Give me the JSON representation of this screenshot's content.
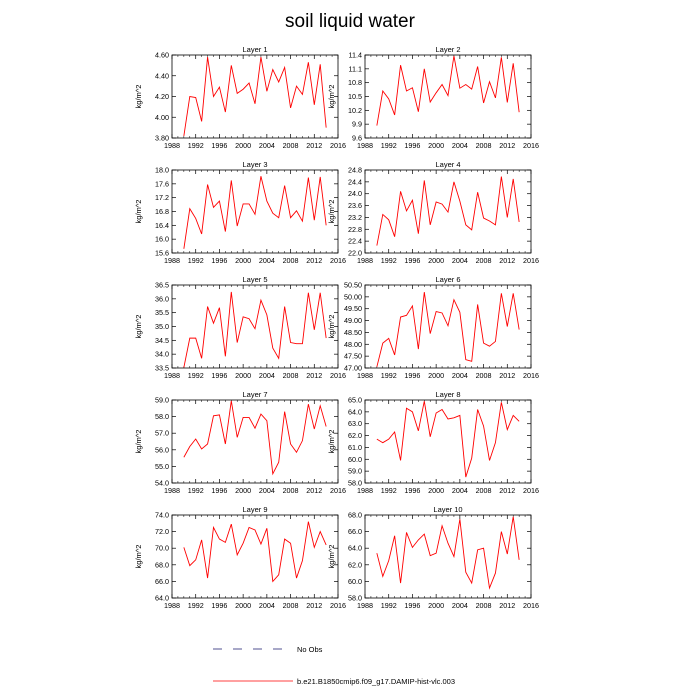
{
  "figure": {
    "title": "soil liquid water"
  },
  "legend": {
    "no_obs_label": "No Obs",
    "model_label": "b.e21.B1850cmip6.f09_g17.DAMIP-hist-vlc.003",
    "model_color": "#ff0000",
    "obs_color": "#1a1a6e"
  },
  "chart_data": [
    {
      "type": "line",
      "title": "Layer 1",
      "ylabel": "kg/m^2",
      "xlim": [
        1988,
        2016
      ],
      "ylim": [
        3.8,
        4.6
      ],
      "xticks": [
        1988,
        1992,
        1996,
        2000,
        2004,
        2008,
        2012,
        2016
      ],
      "xtick_labels": [
        "1988",
        "1992",
        "1996",
        "2000",
        "2004",
        "2008",
        "2012",
        "2016"
      ],
      "yticks": [
        3.8,
        4.0,
        4.2,
        4.4,
        4.6
      ],
      "ytick_labels": [
        "3.80",
        "4.00",
        "4.20",
        "4.40",
        "4.60"
      ],
      "x": [
        1990,
        1991,
        1992,
        1993,
        1994,
        1995,
        1996,
        1997,
        1998,
        1999,
        2000,
        2001,
        2002,
        2003,
        2004,
        2005,
        2006,
        2007,
        2008,
        2009,
        2010,
        2011,
        2012,
        2013,
        2014
      ],
      "series": [
        {
          "values": [
            3.82,
            4.2,
            4.19,
            3.96,
            4.58,
            4.2,
            4.29,
            4.05,
            4.5,
            4.23,
            4.27,
            4.33,
            4.13,
            4.58,
            4.25,
            4.46,
            4.34,
            4.48,
            4.09,
            4.3,
            4.22,
            4.53,
            4.12,
            4.51,
            3.9
          ]
        }
      ]
    },
    {
      "type": "line",
      "title": "Layer 2",
      "ylabel": "kg/m^2",
      "xlim": [
        1988,
        2016
      ],
      "ylim": [
        9.6,
        11.4
      ],
      "xticks": [
        1988,
        1992,
        1996,
        2000,
        2004,
        2008,
        2012,
        2016
      ],
      "xtick_labels": [
        "1988",
        "1992",
        "1996",
        "2000",
        "2004",
        "2008",
        "2012",
        "2016"
      ],
      "yticks": [
        9.6,
        9.9,
        10.2,
        10.5,
        10.8,
        11.1,
        11.4
      ],
      "ytick_labels": [
        "9.6",
        "9.9",
        "10.2",
        "10.5",
        "10.8",
        "11.1",
        "11.4"
      ],
      "x": [
        1990,
        1991,
        1992,
        1993,
        1994,
        1995,
        1996,
        1997,
        1998,
        1999,
        2000,
        2001,
        2002,
        2003,
        2004,
        2005,
        2006,
        2007,
        2008,
        2009,
        2010,
        2011,
        2012,
        2013,
        2014
      ],
      "series": [
        {
          "values": [
            9.87,
            10.62,
            10.45,
            10.1,
            11.18,
            10.62,
            10.69,
            10.17,
            11.1,
            10.38,
            10.58,
            10.76,
            10.52,
            11.38,
            10.68,
            10.76,
            10.66,
            11.15,
            10.36,
            10.82,
            10.47,
            11.35,
            10.37,
            11.22,
            10.16
          ]
        }
      ]
    },
    {
      "type": "line",
      "title": "Layer 3",
      "ylabel": "kg/m^2",
      "xlim": [
        1988,
        2016
      ],
      "ylim": [
        15.6,
        18.0
      ],
      "xticks": [
        1988,
        1992,
        1996,
        2000,
        2004,
        2008,
        2012,
        2016
      ],
      "xtick_labels": [
        "1988",
        "1992",
        "1996",
        "2000",
        "2004",
        "2008",
        "2012",
        "2016"
      ],
      "yticks": [
        15.6,
        16.0,
        16.4,
        16.8,
        17.2,
        17.6,
        18.0
      ],
      "ytick_labels": [
        "15.6",
        "16.0",
        "16.4",
        "16.8",
        "17.2",
        "17.6",
        "18.0"
      ],
      "x": [
        1990,
        1991,
        1992,
        1993,
        1994,
        1995,
        1996,
        1997,
        1998,
        1999,
        2000,
        2001,
        2002,
        2003,
        2004,
        2005,
        2006,
        2007,
        2008,
        2009,
        2010,
        2011,
        2012,
        2013,
        2014
      ],
      "series": [
        {
          "values": [
            15.72,
            16.88,
            16.6,
            16.15,
            17.58,
            16.92,
            17.1,
            16.22,
            17.7,
            16.38,
            17.02,
            17.02,
            16.72,
            17.82,
            17.1,
            16.75,
            16.62,
            17.55,
            16.62,
            16.82,
            16.52,
            17.78,
            16.55,
            17.8,
            16.4
          ]
        }
      ]
    },
    {
      "type": "line",
      "title": "Layer 4",
      "ylabel": "kg/m^2",
      "xlim": [
        1988,
        2016
      ],
      "ylim": [
        22.0,
        24.8
      ],
      "xticks": [
        1988,
        1992,
        1996,
        2000,
        2004,
        2008,
        2012,
        2016
      ],
      "xtick_labels": [
        "1988",
        "1992",
        "1996",
        "2000",
        "2004",
        "2008",
        "2012",
        "2016"
      ],
      "yticks": [
        22.0,
        22.4,
        22.8,
        23.2,
        23.6,
        24.0,
        24.4,
        24.8
      ],
      "ytick_labels": [
        "22.0",
        "22.4",
        "22.8",
        "23.2",
        "23.6",
        "24.0",
        "24.4",
        "24.8"
      ],
      "x": [
        1990,
        1991,
        1992,
        1993,
        1994,
        1995,
        1996,
        1997,
        1998,
        1999,
        2000,
        2001,
        2002,
        2003,
        2004,
        2005,
        2006,
        2007,
        2008,
        2009,
        2010,
        2011,
        2012,
        2013,
        2014
      ],
      "series": [
        {
          "values": [
            22.25,
            23.3,
            23.12,
            22.55,
            24.08,
            23.42,
            23.78,
            22.65,
            24.45,
            22.95,
            23.72,
            23.65,
            23.38,
            24.4,
            23.75,
            22.95,
            22.78,
            24.05,
            23.18,
            23.08,
            22.95,
            24.58,
            23.2,
            24.5,
            23.05
          ]
        }
      ]
    },
    {
      "type": "line",
      "title": "Layer 5",
      "ylabel": "kg/m^2",
      "xlim": [
        1988,
        2016
      ],
      "ylim": [
        33.5,
        36.5
      ],
      "xticks": [
        1988,
        1992,
        1996,
        2000,
        2004,
        2008,
        2012,
        2016
      ],
      "xtick_labels": [
        "1988",
        "1992",
        "1996",
        "2000",
        "2004",
        "2008",
        "2012",
        "2016"
      ],
      "yticks": [
        33.5,
        34.0,
        34.5,
        35.0,
        35.5,
        36.0,
        36.5
      ],
      "ytick_labels": [
        "33.5",
        "34.0",
        "34.5",
        "35.0",
        "35.5",
        "36.0",
        "36.5"
      ],
      "x": [
        1990,
        1991,
        1992,
        1993,
        1994,
        1995,
        1996,
        1997,
        1998,
        1999,
        2000,
        2001,
        2002,
        2003,
        2004,
        2005,
        2006,
        2007,
        2008,
        2009,
        2010,
        2011,
        2012,
        2013,
        2014
      ],
      "series": [
        {
          "values": [
            33.52,
            34.58,
            34.58,
            33.85,
            35.72,
            35.12,
            35.68,
            33.92,
            36.25,
            34.42,
            35.35,
            35.28,
            34.92,
            35.95,
            35.42,
            34.22,
            33.85,
            35.72,
            34.42,
            34.38,
            34.38,
            36.22,
            34.88,
            36.22,
            34.58
          ]
        }
      ]
    },
    {
      "type": "line",
      "title": "Layer 6",
      "ylabel": "kg/m^2",
      "xlim": [
        1988,
        2016
      ],
      "ylim": [
        47.0,
        50.5
      ],
      "xticks": [
        1988,
        1992,
        1996,
        2000,
        2004,
        2008,
        2012,
        2016
      ],
      "xtick_labels": [
        "1988",
        "1992",
        "1996",
        "2000",
        "2004",
        "2008",
        "2012",
        "2016"
      ],
      "yticks": [
        47.0,
        47.5,
        48.0,
        48.5,
        49.0,
        49.5,
        50.0,
        50.5
      ],
      "ytick_labels": [
        "47.00",
        "47.50",
        "48.00",
        "48.50",
        "49.00",
        "49.50",
        "50.00",
        "50.50"
      ],
      "x": [
        1990,
        1991,
        1992,
        1993,
        1994,
        1995,
        1996,
        1997,
        1998,
        1999,
        2000,
        2001,
        2002,
        2003,
        2004,
        2005,
        2006,
        2007,
        2008,
        2009,
        2010,
        2011,
        2012,
        2013,
        2014
      ],
      "series": [
        {
          "values": [
            47.05,
            48.05,
            48.25,
            47.55,
            49.15,
            49.22,
            49.62,
            47.8,
            50.2,
            48.45,
            49.38,
            49.32,
            48.78,
            49.88,
            49.35,
            47.35,
            47.28,
            49.68,
            48.05,
            47.92,
            48.12,
            50.15,
            48.75,
            50.15,
            48.62
          ]
        }
      ]
    },
    {
      "type": "line",
      "title": "Layer 7",
      "ylabel": "kg/m^2",
      "xlim": [
        1988,
        2016
      ],
      "ylim": [
        54.0,
        59.0
      ],
      "xticks": [
        1988,
        1992,
        1996,
        2000,
        2004,
        2008,
        2012,
        2016
      ],
      "xtick_labels": [
        "1988",
        "1992",
        "1996",
        "2000",
        "2004",
        "2008",
        "2012",
        "2016"
      ],
      "yticks": [
        54.0,
        55.0,
        56.0,
        57.0,
        58.0,
        59.0
      ],
      "ytick_labels": [
        "54.0",
        "55.0",
        "56.0",
        "57.0",
        "58.0",
        "59.0"
      ],
      "x": [
        1990,
        1991,
        1992,
        1993,
        1994,
        1995,
        1996,
        1997,
        1998,
        1999,
        2000,
        2001,
        2002,
        2003,
        2004,
        2005,
        2006,
        2007,
        2008,
        2009,
        2010,
        2011,
        2012,
        2013,
        2014
      ],
      "series": [
        {
          "values": [
            55.55,
            56.2,
            56.65,
            56.05,
            56.35,
            58.05,
            58.1,
            56.35,
            58.95,
            56.75,
            57.95,
            57.95,
            57.3,
            58.15,
            57.75,
            54.55,
            55.25,
            58.3,
            56.35,
            55.85,
            56.55,
            58.75,
            57.25,
            58.65,
            57.4
          ]
        }
      ]
    },
    {
      "type": "line",
      "title": "Layer 8",
      "ylabel": "kg/m^2",
      "xlim": [
        1988,
        2016
      ],
      "ylim": [
        58.0,
        65.0
      ],
      "xticks": [
        1988,
        1992,
        1996,
        2000,
        2004,
        2008,
        2012,
        2016
      ],
      "xtick_labels": [
        "1988",
        "1992",
        "1996",
        "2000",
        "2004",
        "2008",
        "2012",
        "2016"
      ],
      "yticks": [
        58.0,
        59.0,
        60.0,
        61.0,
        62.0,
        63.0,
        64.0,
        65.0
      ],
      "ytick_labels": [
        "58.0",
        "59.0",
        "60.0",
        "61.0",
        "62.0",
        "63.0",
        "64.0",
        "65.0"
      ],
      "x": [
        1990,
        1991,
        1992,
        1993,
        1994,
        1995,
        1996,
        1997,
        1998,
        1999,
        2000,
        2001,
        2002,
        2003,
        2004,
        2005,
        2006,
        2007,
        2008,
        2009,
        2010,
        2011,
        2012,
        2013,
        2014
      ],
      "series": [
        {
          "values": [
            61.7,
            61.4,
            61.7,
            62.3,
            59.9,
            64.3,
            64.0,
            62.4,
            64.9,
            61.9,
            63.9,
            64.2,
            63.4,
            63.5,
            63.7,
            58.5,
            60.1,
            64.2,
            62.8,
            59.9,
            61.4,
            64.8,
            62.5,
            63.7,
            63.2
          ]
        }
      ]
    },
    {
      "type": "line",
      "title": "Layer 9",
      "ylabel": "kg/m^2",
      "xlim": [
        1988,
        2016
      ],
      "ylim": [
        64.0,
        74.0
      ],
      "xticks": [
        1988,
        1992,
        1996,
        2000,
        2004,
        2008,
        2012,
        2016
      ],
      "xtick_labels": [
        "1988",
        "1992",
        "1996",
        "2000",
        "2004",
        "2008",
        "2012",
        "2016"
      ],
      "yticks": [
        64.0,
        66.0,
        68.0,
        70.0,
        72.0,
        74.0
      ],
      "ytick_labels": [
        "64.0",
        "66.0",
        "68.0",
        "70.0",
        "72.0",
        "74.0"
      ],
      "x": [
        1990,
        1991,
        1992,
        1993,
        1994,
        1995,
        1996,
        1997,
        1998,
        1999,
        2000,
        2001,
        2002,
        2003,
        2004,
        2005,
        2006,
        2007,
        2008,
        2009,
        2010,
        2011,
        2012,
        2013,
        2014
      ],
      "series": [
        {
          "values": [
            70.1,
            67.9,
            68.6,
            71.0,
            66.4,
            72.5,
            71.1,
            70.7,
            72.9,
            69.2,
            70.6,
            72.5,
            72.2,
            70.5,
            72.4,
            66.0,
            66.8,
            71.1,
            70.6,
            66.4,
            68.5,
            73.2,
            70.1,
            72.0,
            70.4
          ]
        }
      ]
    },
    {
      "type": "line",
      "title": "Layer 10",
      "ylabel": "kg/m^2",
      "xlim": [
        1988,
        2016
      ],
      "ylim": [
        58.0,
        68.0
      ],
      "xticks": [
        1988,
        1992,
        1996,
        2000,
        2004,
        2008,
        2012,
        2016
      ],
      "xtick_labels": [
        "1988",
        "1992",
        "1996",
        "2000",
        "2004",
        "2008",
        "2012",
        "2016"
      ],
      "yticks": [
        58.0,
        60.0,
        62.0,
        64.0,
        66.0,
        68.0
      ],
      "ytick_labels": [
        "58.0",
        "60.0",
        "62.0",
        "64.0",
        "66.0",
        "68.0"
      ],
      "x": [
        1990,
        1991,
        1992,
        1993,
        1994,
        1995,
        1996,
        1997,
        1998,
        1999,
        2000,
        2001,
        2002,
        2003,
        2004,
        2005,
        2006,
        2007,
        2008,
        2009,
        2010,
        2011,
        2012,
        2013,
        2014
      ],
      "series": [
        {
          "values": [
            63.4,
            60.6,
            62.5,
            65.5,
            59.8,
            65.9,
            64.1,
            65.0,
            65.7,
            63.1,
            63.4,
            66.7,
            64.6,
            63.0,
            67.5,
            61.1,
            59.8,
            63.8,
            64.0,
            59.2,
            61.0,
            66.0,
            63.3,
            67.8,
            62.6
          ]
        }
      ]
    }
  ]
}
